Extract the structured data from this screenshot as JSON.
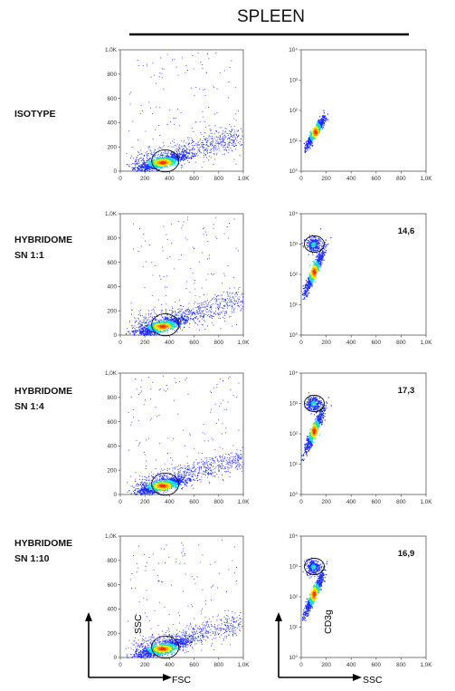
{
  "title": "SPLEEN",
  "rows": [
    {
      "label": "ISOTYPE",
      "percent": ""
    },
    {
      "label": "HYBRIDOME\nSN 1:1",
      "percent": "14,6"
    },
    {
      "label": "HYBRIDOME\nSN 1:4",
      "percent": "17,3"
    },
    {
      "label": "HYBRIDOME\nSN 1:10",
      "percent": "16,9"
    }
  ],
  "axes": {
    "fsc_label": "FSC",
    "ssc_label": "SSC",
    "cd3g_label": "CD3g"
  },
  "chart_data": [
    {
      "type": "scatter",
      "panel": "FSC vs SSC",
      "x_ticks": [
        "0",
        "200",
        "400",
        "600",
        "800",
        "1,0K"
      ],
      "y_ticks": [
        "0",
        "200",
        "400",
        "600",
        "800",
        "1,0K"
      ],
      "xlim": [
        0,
        1000
      ],
      "ylim": [
        0,
        1000
      ],
      "gate": {
        "shape": "ellipse",
        "center": [
          365,
          85
        ],
        "rx": 105,
        "ry": 65
      }
    },
    {
      "type": "scatter",
      "panel": "SSC vs CD3g",
      "x_ticks": [
        "0",
        "200",
        "400",
        "600",
        "800",
        "1,0K"
      ],
      "y_ticks": [
        "10⁰",
        "10¹",
        "10²",
        "10³",
        "10⁴"
      ],
      "xlim": [
        0,
        1000
      ],
      "ylim": [
        0,
        4
      ],
      "y_scale": "log"
    }
  ],
  "colors": {
    "low": "#1f2cff",
    "mid": "#18d6ff",
    "high": "#ff2a00"
  }
}
